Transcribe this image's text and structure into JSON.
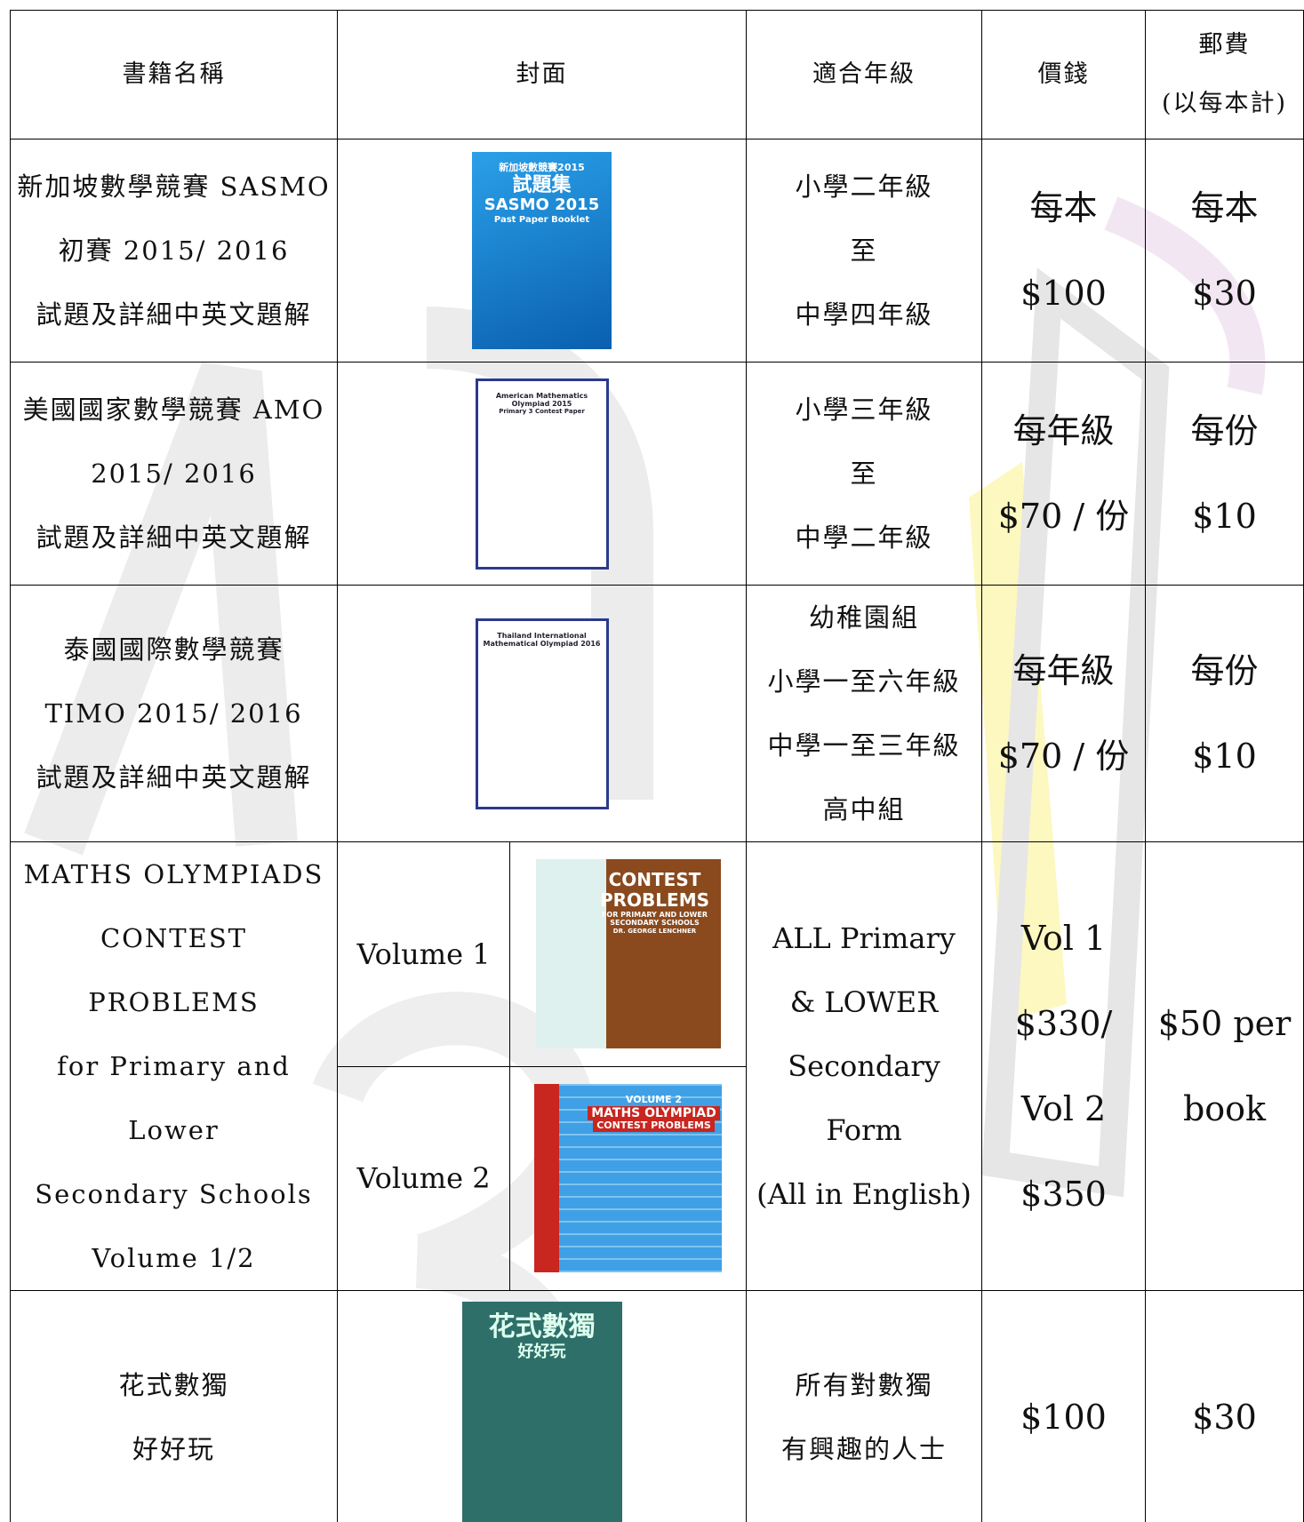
{
  "header": {
    "name": "書籍名稱",
    "cover": "封面",
    "grade": "適合年級",
    "price": "價錢",
    "postage": [
      "郵費",
      "(以每本計)"
    ]
  },
  "rows": [
    {
      "name": [
        "新加坡數學競賽 SASMO",
        "初賽 2015/ 2016",
        "試題及詳細中英文題解"
      ],
      "cover_title": [
        "新加坡數競賽2015",
        "試題集",
        "SASMO 2015",
        "Past Paper Booklet"
      ],
      "grade": [
        "小學二年級",
        "至",
        "中學四年級"
      ],
      "price": [
        "每本",
        "$100"
      ],
      "postage": [
        "每本",
        "$30"
      ]
    },
    {
      "name": [
        "美國國家數學競賽 AMO",
        "2015/ 2016",
        "試題及詳細中英文題解"
      ],
      "cover_title": [
        "American Mathematics Olympiad 2015",
        "Primary 3 Contest Paper"
      ],
      "grade": [
        "小學三年級",
        "至",
        "中學二年級"
      ],
      "price": [
        "每年級",
        "$70 /  份"
      ],
      "postage": [
        "每份",
        "$10"
      ]
    },
    {
      "name": [
        "泰國國際數學競賽",
        "TIMO 2015/ 2016",
        "試題及詳細中英文題解"
      ],
      "cover_title": [
        "Thailand International",
        "Mathematical Olympiad 2016"
      ],
      "grade": [
        "幼稚園組",
        "小學一至六年級",
        "中學一至三年級",
        "高中組"
      ],
      "price": [
        "每年級",
        "$70 /  份"
      ],
      "postage": [
        "每份",
        "$10"
      ]
    },
    {
      "name": [
        "MATHS OLYMPIADS",
        "CONTEST PROBLEMS",
        "for Primary and Lower",
        "Secondary Schools",
        "Volume 1/2"
      ],
      "volumes": [
        {
          "label": "Volume 1",
          "cover_title": [
            "CONTEST",
            "PROBLEMS",
            "FOR PRIMARY AND LOWER SECONDARY SCHOOLS",
            "DR. GEORGE LENCHNER"
          ]
        },
        {
          "label": "Volume 2",
          "cover_title": [
            "VOLUME 2",
            "MATHS OLYMPIAD",
            "CONTEST PROBLEMS"
          ]
        }
      ],
      "grade": [
        "ALL Primary",
        "& LOWER",
        "Secondary",
        "Form",
        "(All in English)"
      ],
      "price": [
        "Vol 1",
        "$330/",
        "Vol 2",
        "$350"
      ],
      "postage": [
        "$50 per",
        "book"
      ]
    },
    {
      "name": [
        "花式數獨",
        "好好玩"
      ],
      "cover_title": [
        "花式數獨",
        "好好玩"
      ],
      "grade": [
        "所有對數獨",
        "有興趣的人士"
      ],
      "price": [
        "$100"
      ],
      "postage": [
        "$30"
      ]
    }
  ]
}
